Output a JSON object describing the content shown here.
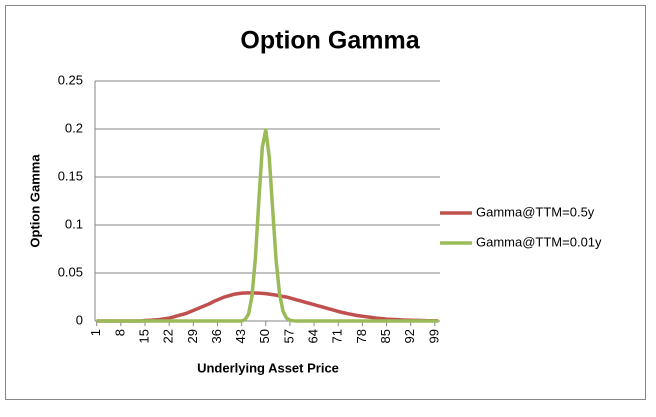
{
  "chart_data": {
    "type": "line",
    "title": "Option Gamma",
    "x_label": "Underlying Asset Price",
    "y_label": "Option Gamma",
    "x": [
      1,
      2,
      3,
      4,
      5,
      6,
      7,
      8,
      9,
      10,
      11,
      12,
      13,
      14,
      15,
      16,
      17,
      18,
      19,
      20,
      21,
      22,
      23,
      24,
      25,
      26,
      27,
      28,
      29,
      30,
      31,
      32,
      33,
      34,
      35,
      36,
      37,
      38,
      39,
      40,
      41,
      42,
      43,
      44,
      45,
      46,
      47,
      48,
      49,
      50,
      51,
      52,
      53,
      54,
      55,
      56,
      57,
      58,
      59,
      60,
      61,
      62,
      63,
      64,
      65,
      66,
      67,
      68,
      69,
      70,
      71,
      72,
      73,
      74,
      75,
      76,
      77,
      78,
      79,
      80,
      81,
      82,
      83,
      84,
      85,
      86,
      87,
      88,
      89,
      90,
      91,
      92,
      93,
      94,
      95,
      96,
      97,
      98,
      99,
      100
    ],
    "xlim": [
      0.5,
      100.5
    ],
    "xticks": [
      1,
      8,
      15,
      22,
      29,
      36,
      43,
      50,
      57,
      64,
      71,
      78,
      85,
      92,
      99
    ],
    "ylim": [
      0,
      0.25
    ],
    "yticks": [
      0,
      0.05,
      0.1,
      0.15,
      0.2,
      0.25
    ],
    "grid": true,
    "legend": "right",
    "series": [
      {
        "name": "Gamma@TTM=0.5y",
        "color": "#c0504d",
        "values": [
          0,
          0,
          0,
          0,
          0,
          0,
          0,
          0,
          0,
          0,
          0,
          0,
          0,
          0,
          0.0005,
          0.0007,
          0.0009,
          0.0012,
          0.0015,
          0.002,
          0.0025,
          0.003,
          0.004,
          0.005,
          0.006,
          0.007,
          0.008,
          0.0095,
          0.011,
          0.0125,
          0.014,
          0.0155,
          0.017,
          0.0185,
          0.0205,
          0.022,
          0.0235,
          0.025,
          0.026,
          0.027,
          0.028,
          0.0285,
          0.029,
          0.0292,
          0.0293,
          0.0293,
          0.0292,
          0.029,
          0.0288,
          0.0285,
          0.028,
          0.0275,
          0.027,
          0.026,
          0.0255,
          0.025,
          0.024,
          0.023,
          0.022,
          0.021,
          0.02,
          0.019,
          0.018,
          0.017,
          0.016,
          0.015,
          0.014,
          0.013,
          0.012,
          0.011,
          0.01,
          0.009,
          0.0083,
          0.0075,
          0.0068,
          0.006,
          0.0055,
          0.005,
          0.0045,
          0.004,
          0.0035,
          0.003,
          0.0027,
          0.0024,
          0.002,
          0.0018,
          0.0016,
          0.0014,
          0.0012,
          0.001,
          0.0009,
          0.0008,
          0.0007,
          0.0006,
          0.0005,
          0.0004,
          0.0003,
          0.0003,
          0.0002,
          0.0002
        ]
      },
      {
        "name": "Gamma@TTM=0.01y",
        "color": "#9bbb59",
        "values": [
          0,
          0,
          0,
          0,
          0,
          0,
          0,
          0,
          0,
          0,
          0,
          0,
          0,
          0,
          0,
          0,
          0,
          0,
          0,
          0,
          0,
          0,
          0,
          0,
          0,
          0,
          0,
          0,
          0,
          0,
          0,
          0,
          0,
          0,
          0,
          0,
          0,
          0,
          0,
          0,
          0,
          0,
          0,
          0.0014,
          0.0072,
          0.0257,
          0.066,
          0.126,
          0.181,
          0.199,
          0.171,
          0.116,
          0.063,
          0.028,
          0.0102,
          0.0031,
          0.0008,
          0.0002,
          0,
          0,
          0,
          0,
          0,
          0,
          0,
          0,
          0,
          0,
          0,
          0,
          0,
          0,
          0,
          0,
          0,
          0,
          0,
          0,
          0,
          0,
          0,
          0,
          0,
          0,
          0,
          0,
          0,
          0,
          0,
          0,
          0,
          0,
          0,
          0,
          0,
          0,
          0,
          0,
          0,
          0
        ]
      }
    ]
  }
}
